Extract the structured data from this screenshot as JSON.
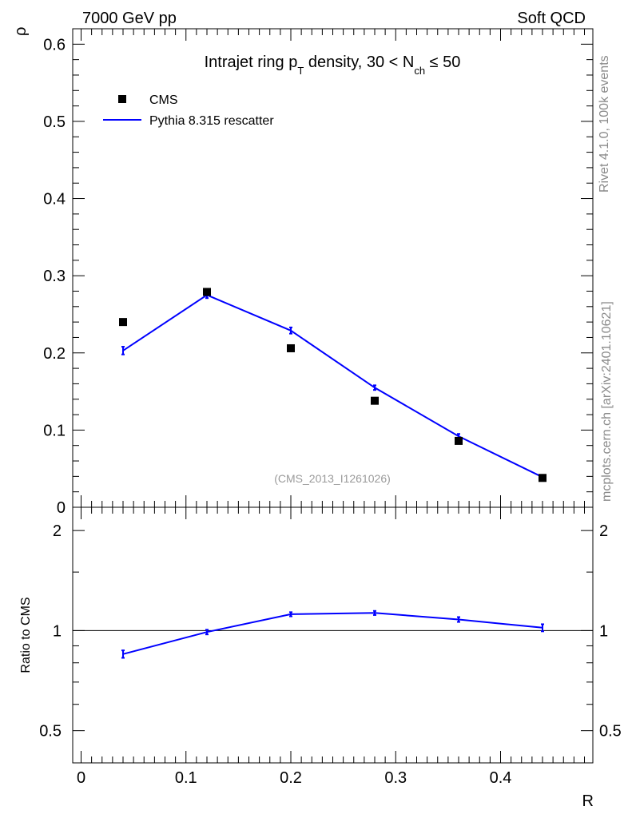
{
  "header": {
    "left": "7000 GeV pp",
    "right": "Soft QCD"
  },
  "side_text": {
    "rivet": "Rivet 4.1.0,  100k events",
    "source": "mcplots.cern.ch [arXiv:2401.10621]"
  },
  "chart_data": [
    {
      "type": "scatter",
      "panel": "main",
      "title_parts": {
        "a": "Intrajet ring p",
        "a_sub": "T",
        "b": " density, 30 < N",
        "b_sub": "ch",
        "c": " ≤ 50"
      },
      "ylabel": "ρ",
      "xlim": [
        -0.008,
        0.488
      ],
      "ylim": [
        0,
        0.62
      ],
      "yticks": [
        0,
        0.1,
        0.2,
        0.3,
        0.4,
        0.5,
        0.6
      ],
      "yticklabels": [
        "0",
        "0.1",
        "0.2",
        "0.3",
        "0.4",
        "0.5",
        "0.6"
      ],
      "legend_position": "top-left",
      "watermark": "(CMS_2013_I1261026)",
      "x": [
        0.04,
        0.12,
        0.2,
        0.28,
        0.36,
        0.44
      ],
      "series": [
        {
          "name": "CMS",
          "kind": "markers",
          "color": "#000000",
          "values": [
            0.24,
            0.279,
            0.206,
            0.138,
            0.086,
            0.038
          ]
        },
        {
          "name": "Pythia 8.315 rescatter",
          "kind": "line",
          "color": "#0000ff",
          "values": [
            0.203,
            0.275,
            0.229,
            0.155,
            0.092,
            0.039
          ],
          "errors": [
            0.005,
            0.004,
            0.004,
            0.003,
            0.003,
            0.002
          ]
        }
      ]
    },
    {
      "type": "line",
      "panel": "ratio",
      "ylabel": "Ratio to CMS",
      "xlabel": "R",
      "xlim": [
        -0.008,
        0.488
      ],
      "ylim": [
        0.4,
        2.35
      ],
      "log_y": true,
      "yticks": [
        0.5,
        1,
        2
      ],
      "yticklabels": [
        "0.5",
        "1",
        "2"
      ],
      "xticks": [
        0,
        0.1,
        0.2,
        0.3,
        0.4
      ],
      "xticklabels": [
        "0",
        "0.1",
        "0.2",
        "0.3",
        "0.4"
      ],
      "reference": 1,
      "x": [
        0.04,
        0.12,
        0.2,
        0.28,
        0.36,
        0.44
      ],
      "series": [
        {
          "name": "Pythia 8.315 rescatter",
          "color": "#0000ff",
          "values": [
            0.85,
            0.99,
            1.12,
            1.13,
            1.08,
            1.02
          ],
          "errors": [
            0.022,
            0.016,
            0.016,
            0.016,
            0.018,
            0.025
          ]
        }
      ]
    }
  ]
}
